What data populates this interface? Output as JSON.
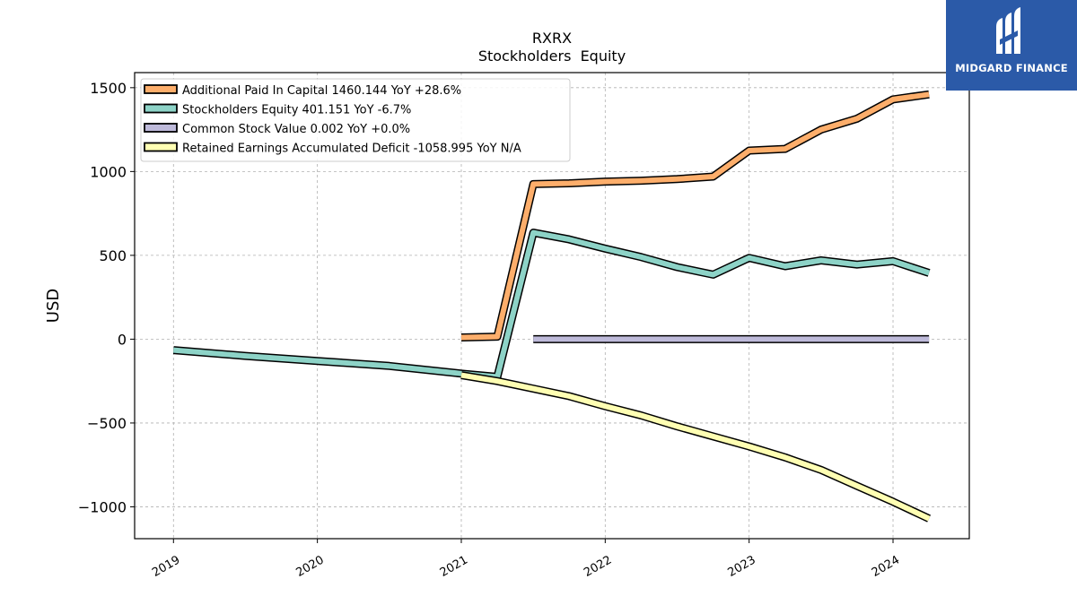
{
  "logo": {
    "text": "MIDGARD FINANCE",
    "color": "#2b5aa8"
  },
  "chart_data": {
    "type": "line",
    "title": "RXRX",
    "subtitle": "Stockholders  Equity",
    "xlabel": "",
    "ylabel": "USD",
    "xlim": [
      2018.73,
      2024.53
    ],
    "ylim": [
      -1190,
      1590
    ],
    "x_ticks": [
      {
        "value": 2019,
        "label": "2019"
      },
      {
        "value": 2020,
        "label": "2020"
      },
      {
        "value": 2021,
        "label": "2021"
      },
      {
        "value": 2022,
        "label": "2022"
      },
      {
        "value": 2023,
        "label": "2023"
      },
      {
        "value": 2024,
        "label": "2024"
      }
    ],
    "y_ticks": [
      {
        "value": 1500,
        "label": "1500"
      },
      {
        "value": 1000,
        "label": "1000"
      },
      {
        "value": 500,
        "label": "500"
      },
      {
        "value": 0,
        "label": "0"
      },
      {
        "value": -500,
        "label": "−500"
      },
      {
        "value": -1000,
        "label": "−1000"
      }
    ],
    "grid": true,
    "legend_position": "top-left",
    "series": [
      {
        "name": "Additional Paid In Capital  1460.144 YoY +28.6%",
        "color": "#fdae6b",
        "x": [
          2021.0,
          2021.25,
          2021.5,
          2021.75,
          2022.0,
          2022.25,
          2022.5,
          2022.75,
          2023.0,
          2023.25,
          2023.5,
          2023.75,
          2024.0,
          2024.25
        ],
        "y": [
          10,
          15,
          925,
          930,
          940,
          945,
          955,
          970,
          1125,
          1135,
          1250,
          1315,
          1430,
          1460
        ]
      },
      {
        "name": "Stockholders Equity  401.151 YoY -6.7%",
        "color": "#8dd3c7",
        "x": [
          2019.0,
          2019.5,
          2020.0,
          2020.5,
          2021.0,
          2021.25,
          2021.5,
          2021.75,
          2022.0,
          2022.25,
          2022.5,
          2022.75,
          2023.0,
          2023.25,
          2023.5,
          2023.75,
          2024.0,
          2024.25
        ],
        "y": [
          -65,
          -100,
          -130,
          -160,
          -205,
          -225,
          635,
          595,
          540,
          490,
          430,
          385,
          485,
          435,
          470,
          445,
          465,
          395
        ]
      },
      {
        "name": "Common Stock Value  0.002 YoY +0.0%",
        "color": "#bebada",
        "x": [
          2021.5,
          2021.75,
          2022.0,
          2022.25,
          2022.5,
          2022.75,
          2023.0,
          2023.25,
          2023.5,
          2023.75,
          2024.0,
          2024.25
        ],
        "y": [
          0,
          0,
          0,
          0,
          0,
          0,
          0,
          0,
          0,
          0,
          0,
          0
        ]
      },
      {
        "name": "Retained Earnings Accumulated Deficit  -1058.995 YoY N/A",
        "color": "#ffffb3",
        "x": [
          2021.0,
          2021.25,
          2021.5,
          2021.75,
          2022.0,
          2022.25,
          2022.5,
          2022.75,
          2023.0,
          2023.25,
          2023.5,
          2023.75,
          2024.0,
          2024.25
        ],
        "y": [
          -215,
          -250,
          -295,
          -340,
          -400,
          -455,
          -520,
          -580,
          -640,
          -705,
          -780,
          -875,
          -970,
          -1070
        ]
      }
    ]
  }
}
